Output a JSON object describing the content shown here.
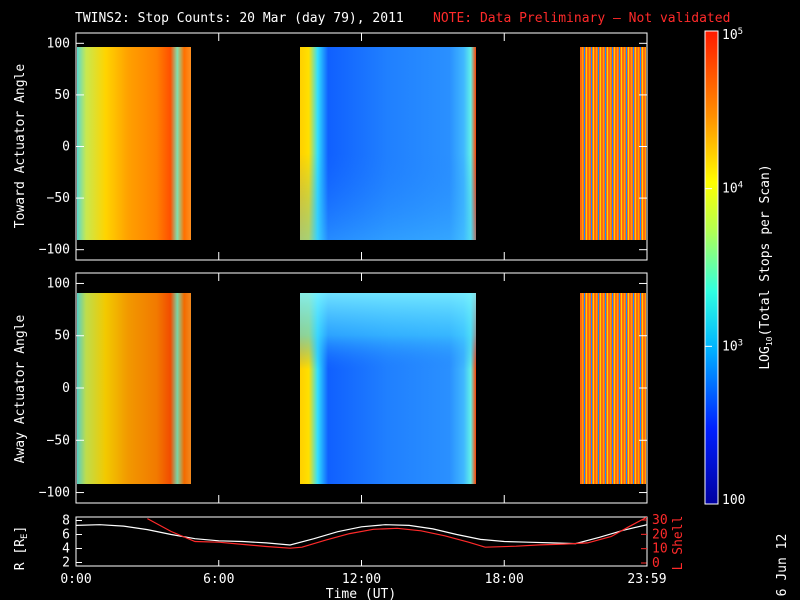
{
  "title": {
    "main": "TWINS2: Stop Counts: 20 Mar (day  79), 2011",
    "note": "NOTE: Data Preliminary – Not validated"
  },
  "chart_data": [
    {
      "type": "heatmap",
      "panel": "toward",
      "ylabel": "Toward Actuator Angle",
      "ylim": [
        -110,
        110
      ],
      "yticks": [
        100,
        50,
        0,
        -50,
        -100
      ],
      "data_ylim": [
        -88,
        90
      ],
      "xlim": [
        0,
        24
      ],
      "xticks": [
        0,
        6,
        12,
        18,
        24
      ],
      "xticklabels": [
        "",
        "",
        "",
        "",
        ""
      ],
      "coverage_hours": [
        [
          0.0,
          4.45
        ],
        [
          9.3,
          16.8
        ],
        [
          21.6,
          24.0
        ]
      ],
      "segments_description": [
        "orange/red high counts",
        "blue low counts",
        "mixed orange/blue striping"
      ]
    },
    {
      "type": "heatmap",
      "panel": "away",
      "ylabel": "Away Actuator Angle",
      "ylim": [
        -110,
        110
      ],
      "yticks": [
        100,
        50,
        0,
        -50,
        -100
      ],
      "data_ylim": [
        -88,
        90
      ],
      "xlim": [
        0,
        24
      ],
      "xticks": [
        0,
        6,
        12,
        18,
        24
      ],
      "xticklabels": [
        "",
        "",
        "",
        "",
        ""
      ],
      "coverage_hours": [
        [
          0.0,
          4.45
        ],
        [
          9.3,
          16.8
        ],
        [
          21.6,
          24.0
        ]
      ]
    },
    {
      "type": "line",
      "panel": "orbit",
      "xlabel": "Time (UT)",
      "xlim": [
        0,
        24
      ],
      "xticks": [
        0,
        6,
        12,
        18,
        24
      ],
      "xticklabels": [
        "0:00",
        "6:00",
        "12:00",
        "18:00",
        "23:59"
      ],
      "ylabel_left": "R [R",
      "ylabel_left_sub": "E",
      "ylabel_left_end": "]",
      "ylim_left": [
        1.5,
        8.5
      ],
      "yticks_left": [
        2,
        4,
        6,
        8
      ],
      "ylabel_right": "L Shell",
      "ylim_right": [
        0,
        30
      ],
      "yticks_right": [
        0,
        10,
        20,
        30
      ],
      "series": [
        {
          "axis": "left",
          "color": "#ffffff",
          "x": [
            0,
            1,
            2,
            3,
            4,
            5,
            6,
            7,
            8,
            9,
            10,
            11,
            12,
            13,
            14,
            15,
            16,
            17,
            18,
            19,
            20,
            21,
            22,
            23,
            24
          ],
          "y": [
            7.3,
            7.4,
            7.2,
            6.7,
            6.0,
            5.4,
            5.1,
            5.0,
            4.8,
            4.5,
            5.4,
            6.4,
            7.1,
            7.4,
            7.3,
            6.8,
            6.0,
            5.3,
            5.0,
            4.9,
            4.8,
            4.7,
            5.6,
            6.6,
            7.4
          ]
        },
        {
          "axis": "right",
          "color": "#ff2a2a",
          "x": [
            3.0,
            4.0,
            5.0,
            6.0,
            7.0,
            8.0,
            9.0,
            9.5,
            10.5,
            11.5,
            12.5,
            13.5,
            14.5,
            15.5,
            16.5,
            17.2,
            18.5,
            19.5,
            20.5,
            21.5,
            22.5,
            23.2,
            24.0
          ],
          "y": [
            31,
            22,
            15,
            14.5,
            13,
            11.5,
            10.3,
            11,
            16,
            20.5,
            23.5,
            24.2,
            22.5,
            19,
            14.5,
            11,
            11.7,
            12.6,
            13.2,
            14,
            18.5,
            25,
            32
          ]
        }
      ]
    }
  ],
  "colorbar": {
    "label_pre": "LOG",
    "label_sub": "10",
    "label_post": "(Total Stops per Scan)",
    "scale": "log",
    "range": [
      100,
      100000
    ],
    "ticks": [
      {
        "value": 100000,
        "base": "10",
        "exp": "5"
      },
      {
        "value": 10000,
        "base": "10",
        "exp": "4"
      },
      {
        "value": 1000,
        "base": "10",
        "exp": "3"
      },
      {
        "value": 100,
        "label": "100"
      }
    ]
  },
  "footer": {
    "date": "6 Jun 12"
  }
}
